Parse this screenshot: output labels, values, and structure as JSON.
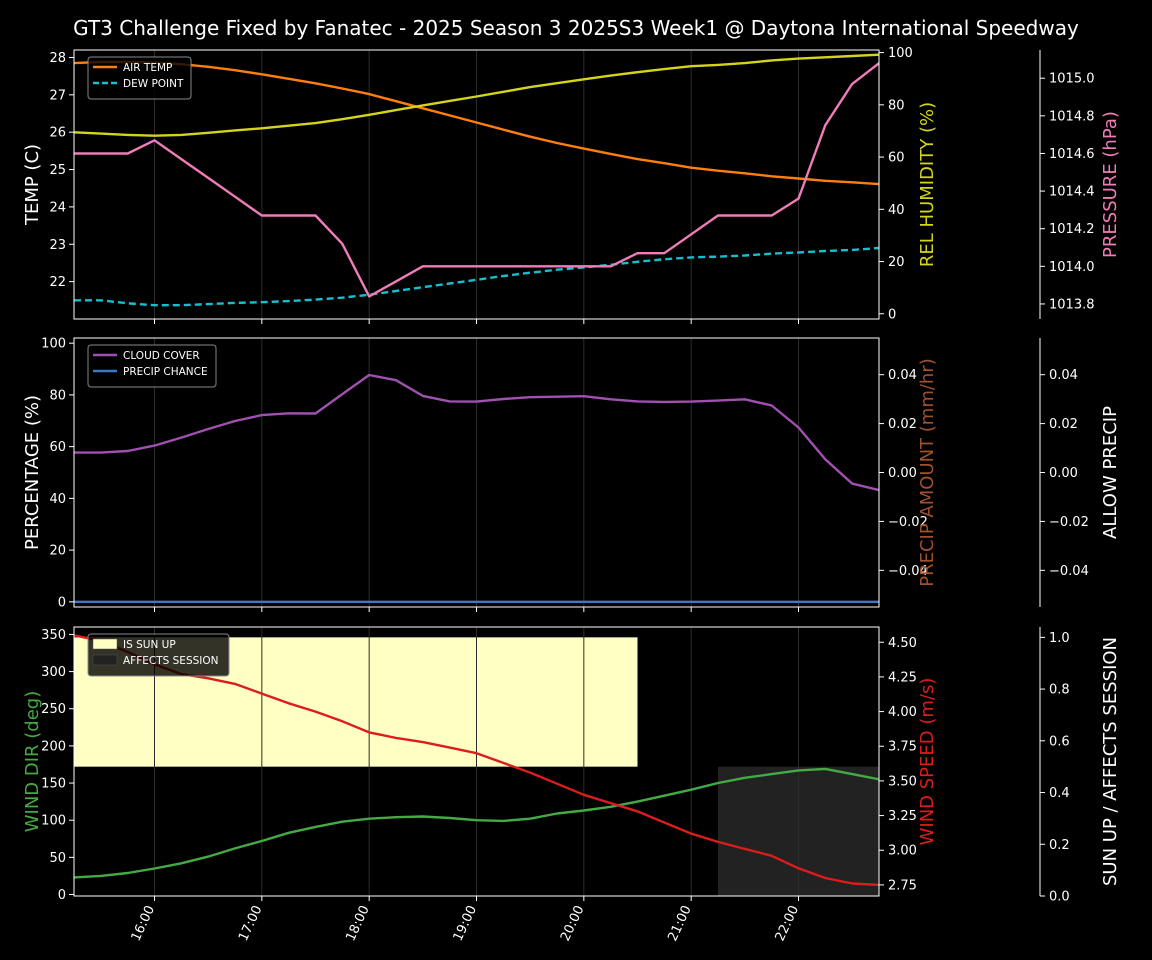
{
  "title": "GT3 Challenge Fixed by Fanatec - 2025 Season 3 2025S3 Week1 @ Daytona International Speedway",
  "x_ticks": [
    "16:00",
    "17:00",
    "18:00",
    "19:00",
    "20:00",
    "21:00",
    "22:00"
  ],
  "colors": {
    "air_temp": "#ff7f0e",
    "dew_point": "#17becf",
    "humidity": "#d4d41a",
    "pressure": "#f07cb8",
    "cloud": "#a050b0",
    "precip_chance": "#3a78c8",
    "precip_amount": "#a0522d",
    "wind_dir": "#44aa44",
    "wind_speed": "#dd1c1c",
    "sun_up": "#ffffc4",
    "affects": "#222222"
  },
  "chart_data": [
    {
      "type": "line",
      "panel": "weather",
      "ylabel": "TEMP (C)",
      "ylabel_right": "REL HUMIDITY (%)",
      "ylabel_far_right": "PRESSURE (hPa)",
      "ylim": [
        21.0,
        28.2
      ],
      "ylim_right": [
        -2,
        101
      ],
      "ylim_far_right": [
        1013.72,
        1015.15
      ],
      "yticks": [
        "22",
        "23",
        "24",
        "25",
        "26",
        "27",
        "28"
      ],
      "yticks_right": [
        "0",
        "20",
        "40",
        "60",
        "80",
        "100"
      ],
      "yticks_far_right": [
        "1013.8",
        "1014.0",
        "1014.2",
        "1014.4",
        "1014.6",
        "1014.8",
        "1015.0"
      ],
      "legend_position": "top-left",
      "x": [
        15.25,
        15.5,
        15.75,
        16.0,
        16.25,
        16.5,
        16.75,
        17.0,
        17.25,
        17.5,
        17.75,
        18.0,
        18.25,
        18.5,
        18.75,
        19.0,
        19.25,
        19.5,
        19.75,
        20.0,
        20.25,
        20.5,
        20.75,
        21.0,
        21.25,
        21.5,
        21.75,
        22.0,
        22.25,
        22.5,
        22.75
      ],
      "series": [
        {
          "name": "AIR TEMP",
          "axis": "left",
          "style": "solid",
          "values": [
            27.85,
            27.88,
            27.88,
            27.86,
            27.82,
            27.75,
            27.66,
            27.55,
            27.43,
            27.31,
            27.17,
            27.02,
            26.83,
            26.64,
            26.45,
            26.26,
            26.07,
            25.88,
            25.71,
            25.56,
            25.42,
            25.28,
            25.17,
            25.05,
            24.97,
            24.9,
            24.82,
            24.76,
            24.7,
            24.66,
            24.61
          ]
        },
        {
          "name": "DEW POINT",
          "axis": "left",
          "style": "dashed",
          "values": [
            21.5,
            21.5,
            21.42,
            21.37,
            21.37,
            21.4,
            21.43,
            21.45,
            21.48,
            21.52,
            21.57,
            21.65,
            21.75,
            21.85,
            21.95,
            22.05,
            22.15,
            22.24,
            22.32,
            22.38,
            22.45,
            22.53,
            22.6,
            22.65,
            22.67,
            22.7,
            22.75,
            22.78,
            22.82,
            22.85,
            22.9
          ]
        },
        {
          "name": "",
          "axis": "right",
          "values": [
            69.5,
            69,
            68.5,
            68.2,
            68.5,
            69.3,
            70.2,
            71,
            72,
            73,
            74.5,
            76.2,
            78,
            79.8,
            81.5,
            83.2,
            85,
            86.8,
            88.3,
            89.8,
            91.2,
            92.5,
            93.7,
            94.8,
            95.3,
            96,
            97,
            97.7,
            98.2,
            98.7,
            99.2
          ]
        },
        {
          "name": "",
          "axis": "far_right",
          "values": [
            1014.6,
            1014.6,
            1014.6,
            1014.67,
            1014.57,
            1014.47,
            1014.37,
            1014.27,
            1014.27,
            1014.27,
            1014.12,
            1013.84,
            1013.92,
            1014.0,
            1014.0,
            1014.0,
            1014.0,
            1014.0,
            1014.0,
            1014.0,
            1014.0,
            1014.07,
            1014.07,
            1014.17,
            1014.27,
            1014.27,
            1014.27,
            1014.36,
            1014.75,
            1014.97,
            1015.08
          ]
        }
      ]
    },
    {
      "type": "line",
      "panel": "cloud",
      "ylabel": "PERCENTAGE (%)",
      "ylabel_right": "PRECIP AMOUNT (mm/hr)",
      "ylabel_far_right": "ALLOW PRECIP",
      "ylim": [
        -2,
        102
      ],
      "ylim_right": [
        -0.055,
        0.055
      ],
      "ylim_far_right": [
        -0.055,
        0.055
      ],
      "yticks": [
        "0",
        "20",
        "40",
        "60",
        "80",
        "100"
      ],
      "yticks_right": [
        "−0.04",
        "−0.02",
        "0.00",
        "0.02",
        "0.04"
      ],
      "yticks_far_right": [
        "−0.04",
        "−0.02",
        "0.00",
        "0.02",
        "0.04"
      ],
      "legend_position": "top-left",
      "x": [
        15.25,
        15.5,
        15.75,
        16.0,
        16.25,
        16.5,
        16.75,
        17.0,
        17.25,
        17.5,
        17.75,
        18.0,
        18.25,
        18.5,
        18.75,
        19.0,
        19.25,
        19.5,
        19.75,
        20.0,
        20.25,
        20.5,
        20.75,
        21.0,
        21.25,
        21.5,
        21.75,
        22.0,
        22.25,
        22.5,
        22.75
      ],
      "series": [
        {
          "name": "CLOUD COVER",
          "axis": "left",
          "values": [
            57.7,
            57.7,
            58.3,
            60.4,
            63.5,
            66.8,
            69.9,
            72.2,
            72.9,
            72.8,
            80.3,
            87.7,
            85.7,
            79.6,
            77.5,
            77.4,
            78.4,
            79.1,
            79.3,
            79.5,
            78.3,
            77.5,
            77.3,
            77.4,
            77.8,
            78.3,
            75.9,
            67.4,
            55.1,
            45.7,
            43.2
          ]
        },
        {
          "name": "PRECIP CHANCE",
          "axis": "left",
          "values": [
            0,
            0,
            0,
            0,
            0,
            0,
            0,
            0,
            0,
            0,
            0,
            0,
            0,
            0,
            0,
            0,
            0,
            0,
            0,
            0,
            0,
            0,
            0,
            0,
            0,
            0,
            0,
            0,
            0,
            0,
            0
          ]
        }
      ]
    },
    {
      "type": "line",
      "panel": "wind",
      "ylabel": "WIND DIR (deg)",
      "ylabel_right": "WIND SPEED (m/s)",
      "ylabel_far_right": "SUN UP / AFFECTS SESSION",
      "ylim": [
        -2,
        360
      ],
      "ylim_right": [
        2.67,
        4.61
      ],
      "ylim_far_right": [
        0,
        1.04
      ],
      "yticks": [
        "0",
        "50",
        "100",
        "150",
        "200",
        "250",
        "300",
        "350"
      ],
      "yticks_right": [
        "2.75",
        "3.00",
        "3.25",
        "3.50",
        "3.75",
        "4.00",
        "4.25",
        "4.50"
      ],
      "yticks_far_right": [
        "0.0",
        "0.2",
        "0.4",
        "0.6",
        "0.8",
        "1.0"
      ],
      "legend_position": "top-left",
      "bands": [
        {
          "name": "IS SUN UP",
          "x_start": 15.25,
          "x_end": 20.5,
          "y_start": 0.5,
          "y_end": 1.0
        },
        {
          "name": "AFFECTS SESSION",
          "x_start": 21.25,
          "x_end": 22.75,
          "y_start": 0.0,
          "y_end": 0.5
        }
      ],
      "x": [
        15.25,
        15.5,
        15.75,
        16.0,
        16.25,
        16.5,
        16.75,
        17.0,
        17.25,
        17.5,
        17.75,
        18.0,
        18.25,
        18.5,
        18.75,
        19.0,
        19.25,
        19.5,
        19.75,
        20.0,
        20.25,
        20.5,
        20.75,
        21.0,
        21.25,
        21.5,
        21.75,
        22.0,
        22.25,
        22.5,
        22.75
      ],
      "series": [
        {
          "name": "",
          "axis": "left",
          "values": [
            23,
            25,
            29,
            35,
            42,
            51,
            62,
            72,
            83,
            91,
            98,
            102,
            104,
            105,
            103,
            100,
            99,
            102,
            109,
            113,
            118,
            125,
            133,
            141,
            150,
            157,
            162,
            167,
            169,
            162,
            155
          ]
        },
        {
          "name": "",
          "axis": "right",
          "values": [
            4.55,
            4.51,
            4.43,
            4.34,
            4.27,
            4.24,
            4.2,
            4.13,
            4.06,
            4.0,
            3.93,
            3.85,
            3.81,
            3.78,
            3.74,
            3.7,
            3.63,
            3.56,
            3.48,
            3.4,
            3.34,
            3.28,
            3.2,
            3.12,
            3.06,
            3.01,
            2.96,
            2.87,
            2.8,
            2.76,
            2.75
          ]
        }
      ]
    }
  ]
}
